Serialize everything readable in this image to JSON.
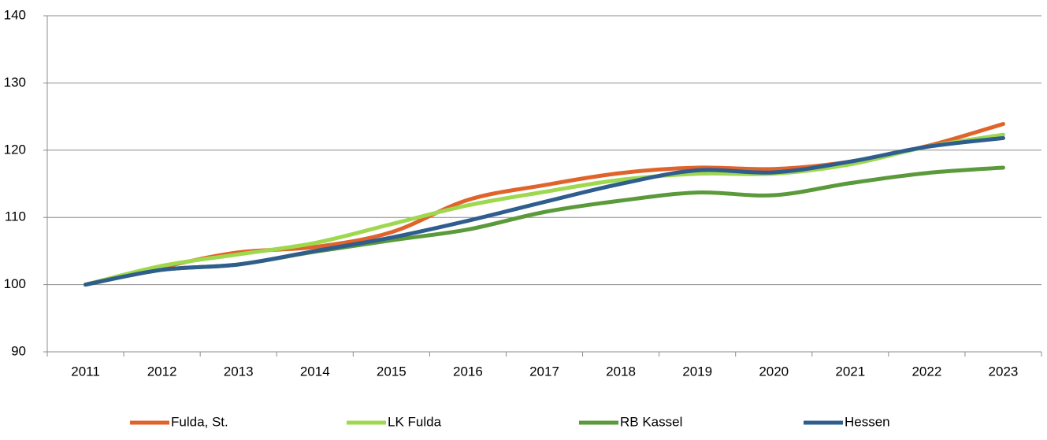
{
  "chart_data": {
    "type": "line",
    "categories": [
      "2011",
      "2012",
      "2013",
      "2014",
      "2015",
      "2016",
      "2017",
      "2018",
      "2019",
      "2020",
      "2021",
      "2022",
      "2023"
    ],
    "series": [
      {
        "name": "Fulda, St.",
        "color": "#e0632b",
        "values": [
          100,
          102.6,
          104.8,
          105.6,
          107.8,
          112.6,
          114.8,
          116.6,
          117.4,
          117.2,
          118.3,
          120.6,
          123.9
        ]
      },
      {
        "name": "LK Fulda",
        "color": "#9ed84e",
        "values": [
          100,
          102.8,
          104.5,
          106.2,
          109.0,
          111.8,
          113.8,
          115.6,
          116.5,
          116.5,
          117.9,
          120.5,
          122.3
        ]
      },
      {
        "name": "RB Kassel",
        "color": "#5b9a3a",
        "values": [
          100,
          102.2,
          103.0,
          104.9,
          106.6,
          108.2,
          110.8,
          112.5,
          113.7,
          113.3,
          115.1,
          116.6,
          117.4
        ]
      },
      {
        "name": "Hessen",
        "color": "#2e5d8e",
        "values": [
          100,
          102.2,
          103.0,
          105.0,
          107.0,
          109.5,
          112.3,
          115.0,
          117.0,
          116.7,
          118.3,
          120.5,
          121.8
        ]
      }
    ],
    "ylim": [
      90,
      140
    ],
    "yticks": [
      90,
      100,
      110,
      120,
      130,
      140
    ],
    "grid": true,
    "legend": "bottom"
  }
}
